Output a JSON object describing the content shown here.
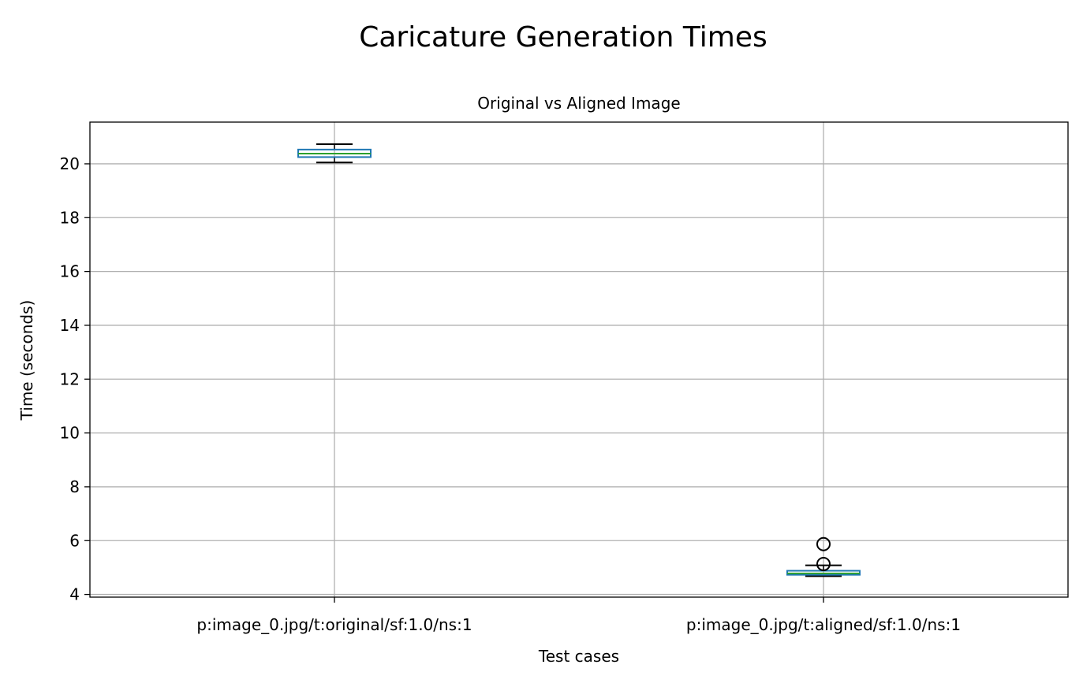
{
  "chart_data": {
    "type": "box",
    "suptitle": "Caricature Generation Times",
    "title": "Original vs Aligned Image",
    "xlabel": "Test cases",
    "ylabel": "Time (seconds)",
    "ylim": [
      3.9,
      21.55
    ],
    "yticks": [
      4,
      6,
      8,
      10,
      12,
      14,
      16,
      18,
      20
    ],
    "grid": true,
    "categories": [
      "p:image_0.jpg/t:original/sf:1.0/ns:1",
      "p:image_0.jpg/t:aligned/sf:1.0/ns:1"
    ],
    "boxes": [
      {
        "whisker_low": 20.05,
        "q1": 20.25,
        "median": 20.38,
        "q3": 20.53,
        "whisker_high": 20.73,
        "outliers": []
      },
      {
        "whisker_low": 4.68,
        "q1": 4.73,
        "median": 4.78,
        "q3": 4.88,
        "whisker_high": 5.08,
        "outliers": [
          5.13,
          5.87
        ]
      }
    ],
    "colors": {
      "box": "#1f77b4",
      "median": "#2ca02c",
      "whisker": "#000000",
      "grid": "#b0b0b0"
    }
  }
}
